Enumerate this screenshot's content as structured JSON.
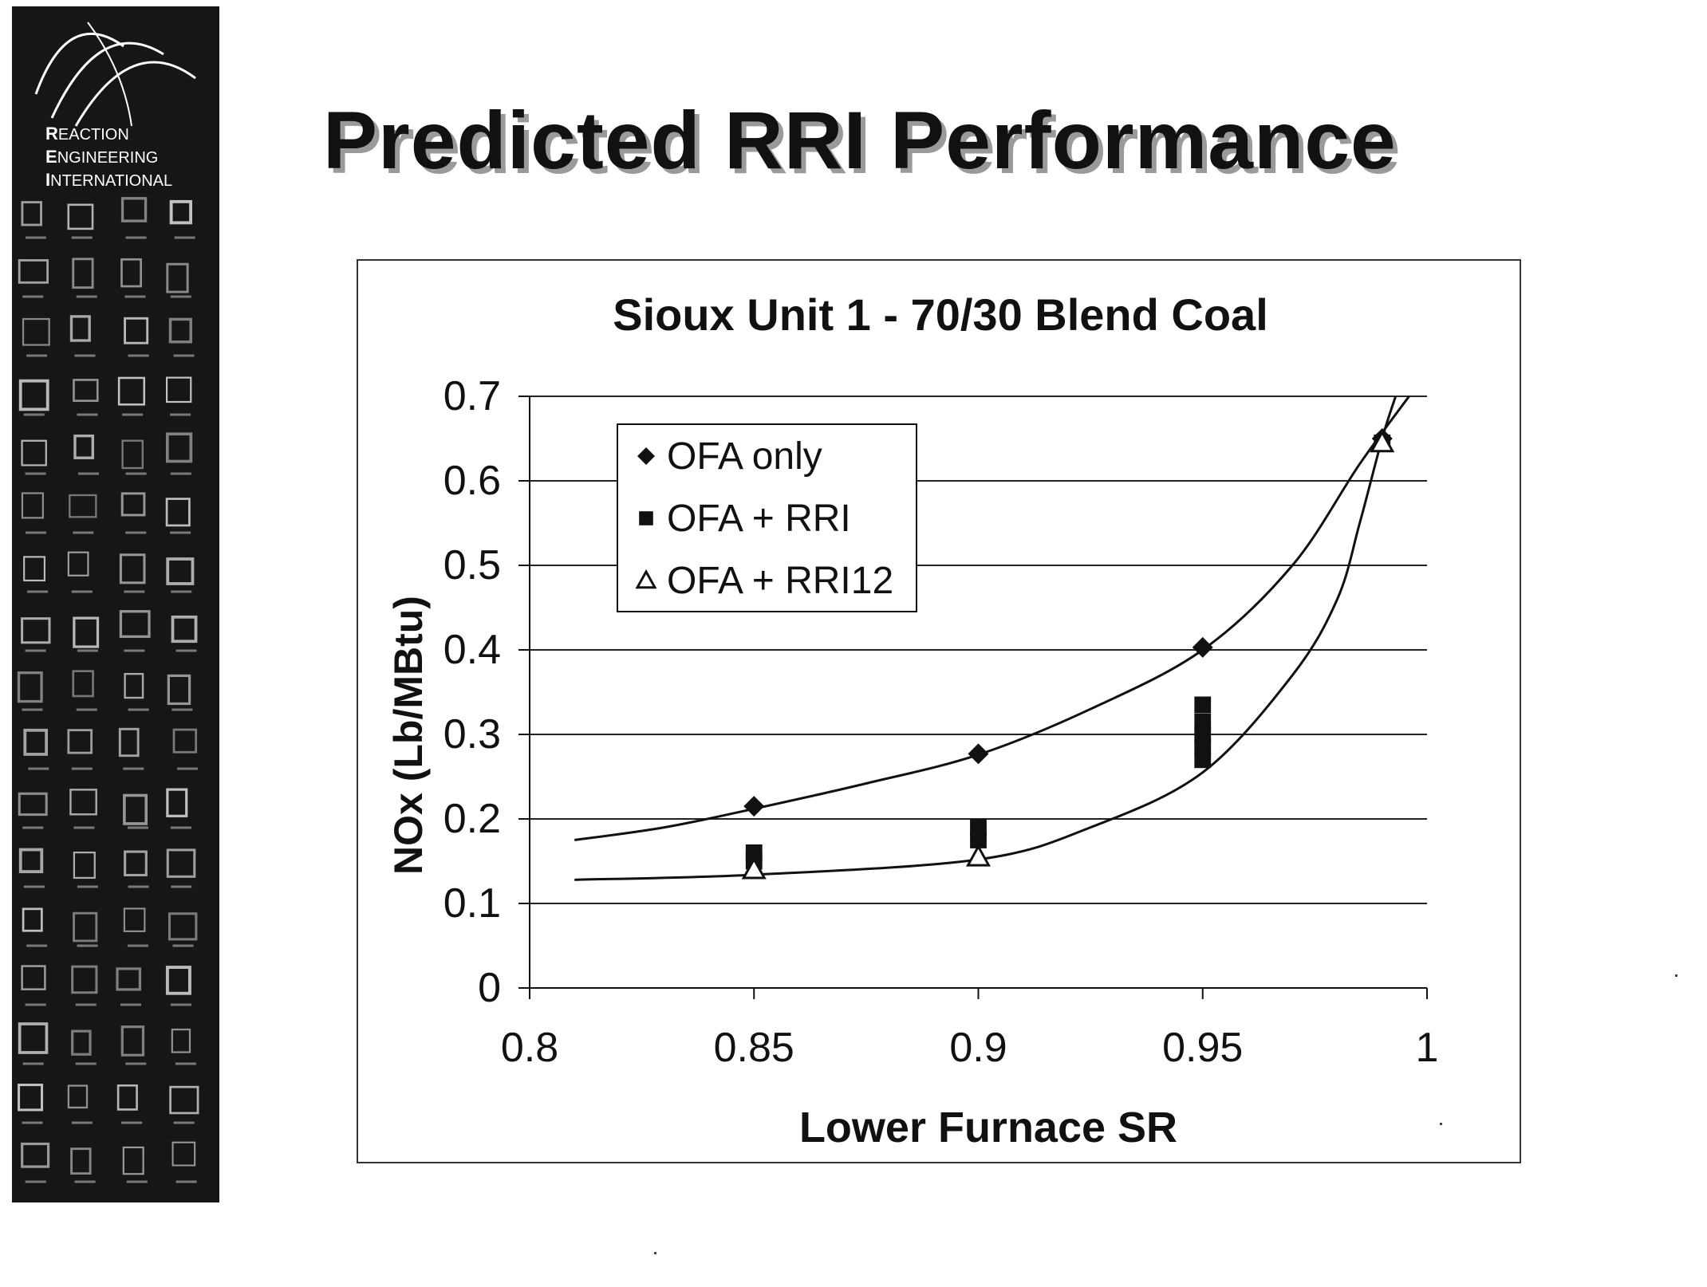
{
  "logo": {
    "line1_initial": "R",
    "line1_rest": "EACTION",
    "line2_initial": "E",
    "line2_rest": "NGINEERING",
    "line3_initial": "I",
    "line3_rest": "NTERNATIONAL"
  },
  "slide": {
    "title": "Predicted RRI Performance"
  },
  "colors": {
    "ink": "#111111",
    "grid": "#222222",
    "sidebar": "#161616",
    "title_shadow": "#9a9a9a"
  },
  "chart_data": {
    "type": "scatter",
    "title": "Sioux Unit 1 - 70/30 Blend Coal",
    "xlabel": "Lower Furnace SR",
    "ylabel": "NOx (Lb/MBtu)",
    "xlim": [
      0.8,
      1
    ],
    "ylim": [
      0,
      0.7
    ],
    "x_ticks": [
      "0.8",
      "0.85",
      "0.9",
      "0.95",
      "1"
    ],
    "y_ticks": [
      "0",
      "0.1",
      "0.2",
      "0.3",
      "0.4",
      "0.5",
      "0.6",
      "0.7"
    ],
    "grid": "horizontal",
    "legend_position": "upper-left",
    "series": [
      {
        "name": "OFA only",
        "marker": "diamond",
        "points": [
          [
            0.85,
            0.215
          ],
          [
            0.9,
            0.277
          ],
          [
            0.95,
            0.403
          ],
          [
            0.99,
            0.65
          ]
        ]
      },
      {
        "name": "OFA + RRI",
        "marker": "square",
        "points": [
          [
            0.85,
            0.16
          ],
          [
            0.85,
            0.15
          ],
          [
            0.9,
            0.19
          ],
          [
            0.9,
            0.175
          ],
          [
            0.95,
            0.335
          ],
          [
            0.95,
            0.315
          ],
          [
            0.95,
            0.3
          ],
          [
            0.95,
            0.285
          ],
          [
            0.95,
            0.27
          ],
          [
            0.99,
            0.645
          ]
        ]
      },
      {
        "name": "OFA + RRI12",
        "marker": "triangle",
        "points": [
          [
            0.85,
            0.14
          ],
          [
            0.9,
            0.155
          ],
          [
            0.99,
            0.645
          ]
        ]
      }
    ],
    "trendlines": [
      {
        "name": "OFA only fit",
        "points": [
          [
            0.81,
            0.175
          ],
          [
            0.83,
            0.19
          ],
          [
            0.85,
            0.212
          ],
          [
            0.875,
            0.242
          ],
          [
            0.9,
            0.276
          ],
          [
            0.925,
            0.33
          ],
          [
            0.95,
            0.4
          ],
          [
            0.97,
            0.5
          ],
          [
            0.985,
            0.62
          ],
          [
            0.996,
            0.7
          ]
        ]
      },
      {
        "name": "OFA + RRI fit",
        "points": [
          [
            0.81,
            0.128
          ],
          [
            0.85,
            0.134
          ],
          [
            0.9,
            0.152
          ],
          [
            0.925,
            0.19
          ],
          [
            0.95,
            0.255
          ],
          [
            0.97,
            0.37
          ],
          [
            0.98,
            0.46
          ],
          [
            0.985,
            0.55
          ],
          [
            0.99,
            0.65
          ],
          [
            0.993,
            0.7
          ]
        ]
      }
    ]
  }
}
